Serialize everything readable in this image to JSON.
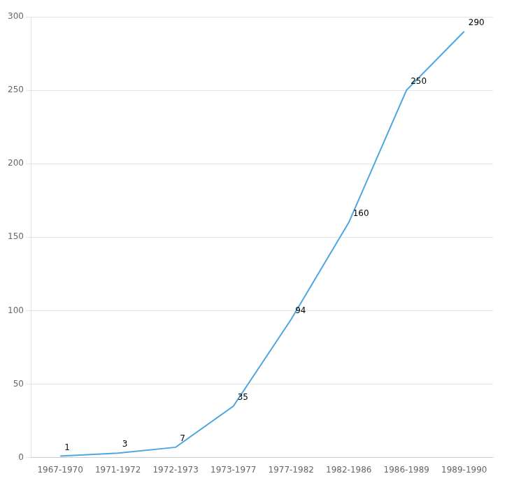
{
  "chart_data": {
    "type": "line",
    "categories": [
      "1967-1970",
      "1971-1972",
      "1972-1973",
      "1973-1977",
      "1977-1982",
      "1982-1986",
      "1986-1989",
      "1989-1990"
    ],
    "values": [
      1,
      3,
      7,
      35,
      94,
      160,
      250,
      290
    ],
    "color": "#4DA6E0",
    "ylim": [
      0,
      300
    ],
    "yticks": [
      0,
      50,
      100,
      150,
      200,
      250,
      300
    ],
    "grid": true,
    "data_labels": true
  }
}
